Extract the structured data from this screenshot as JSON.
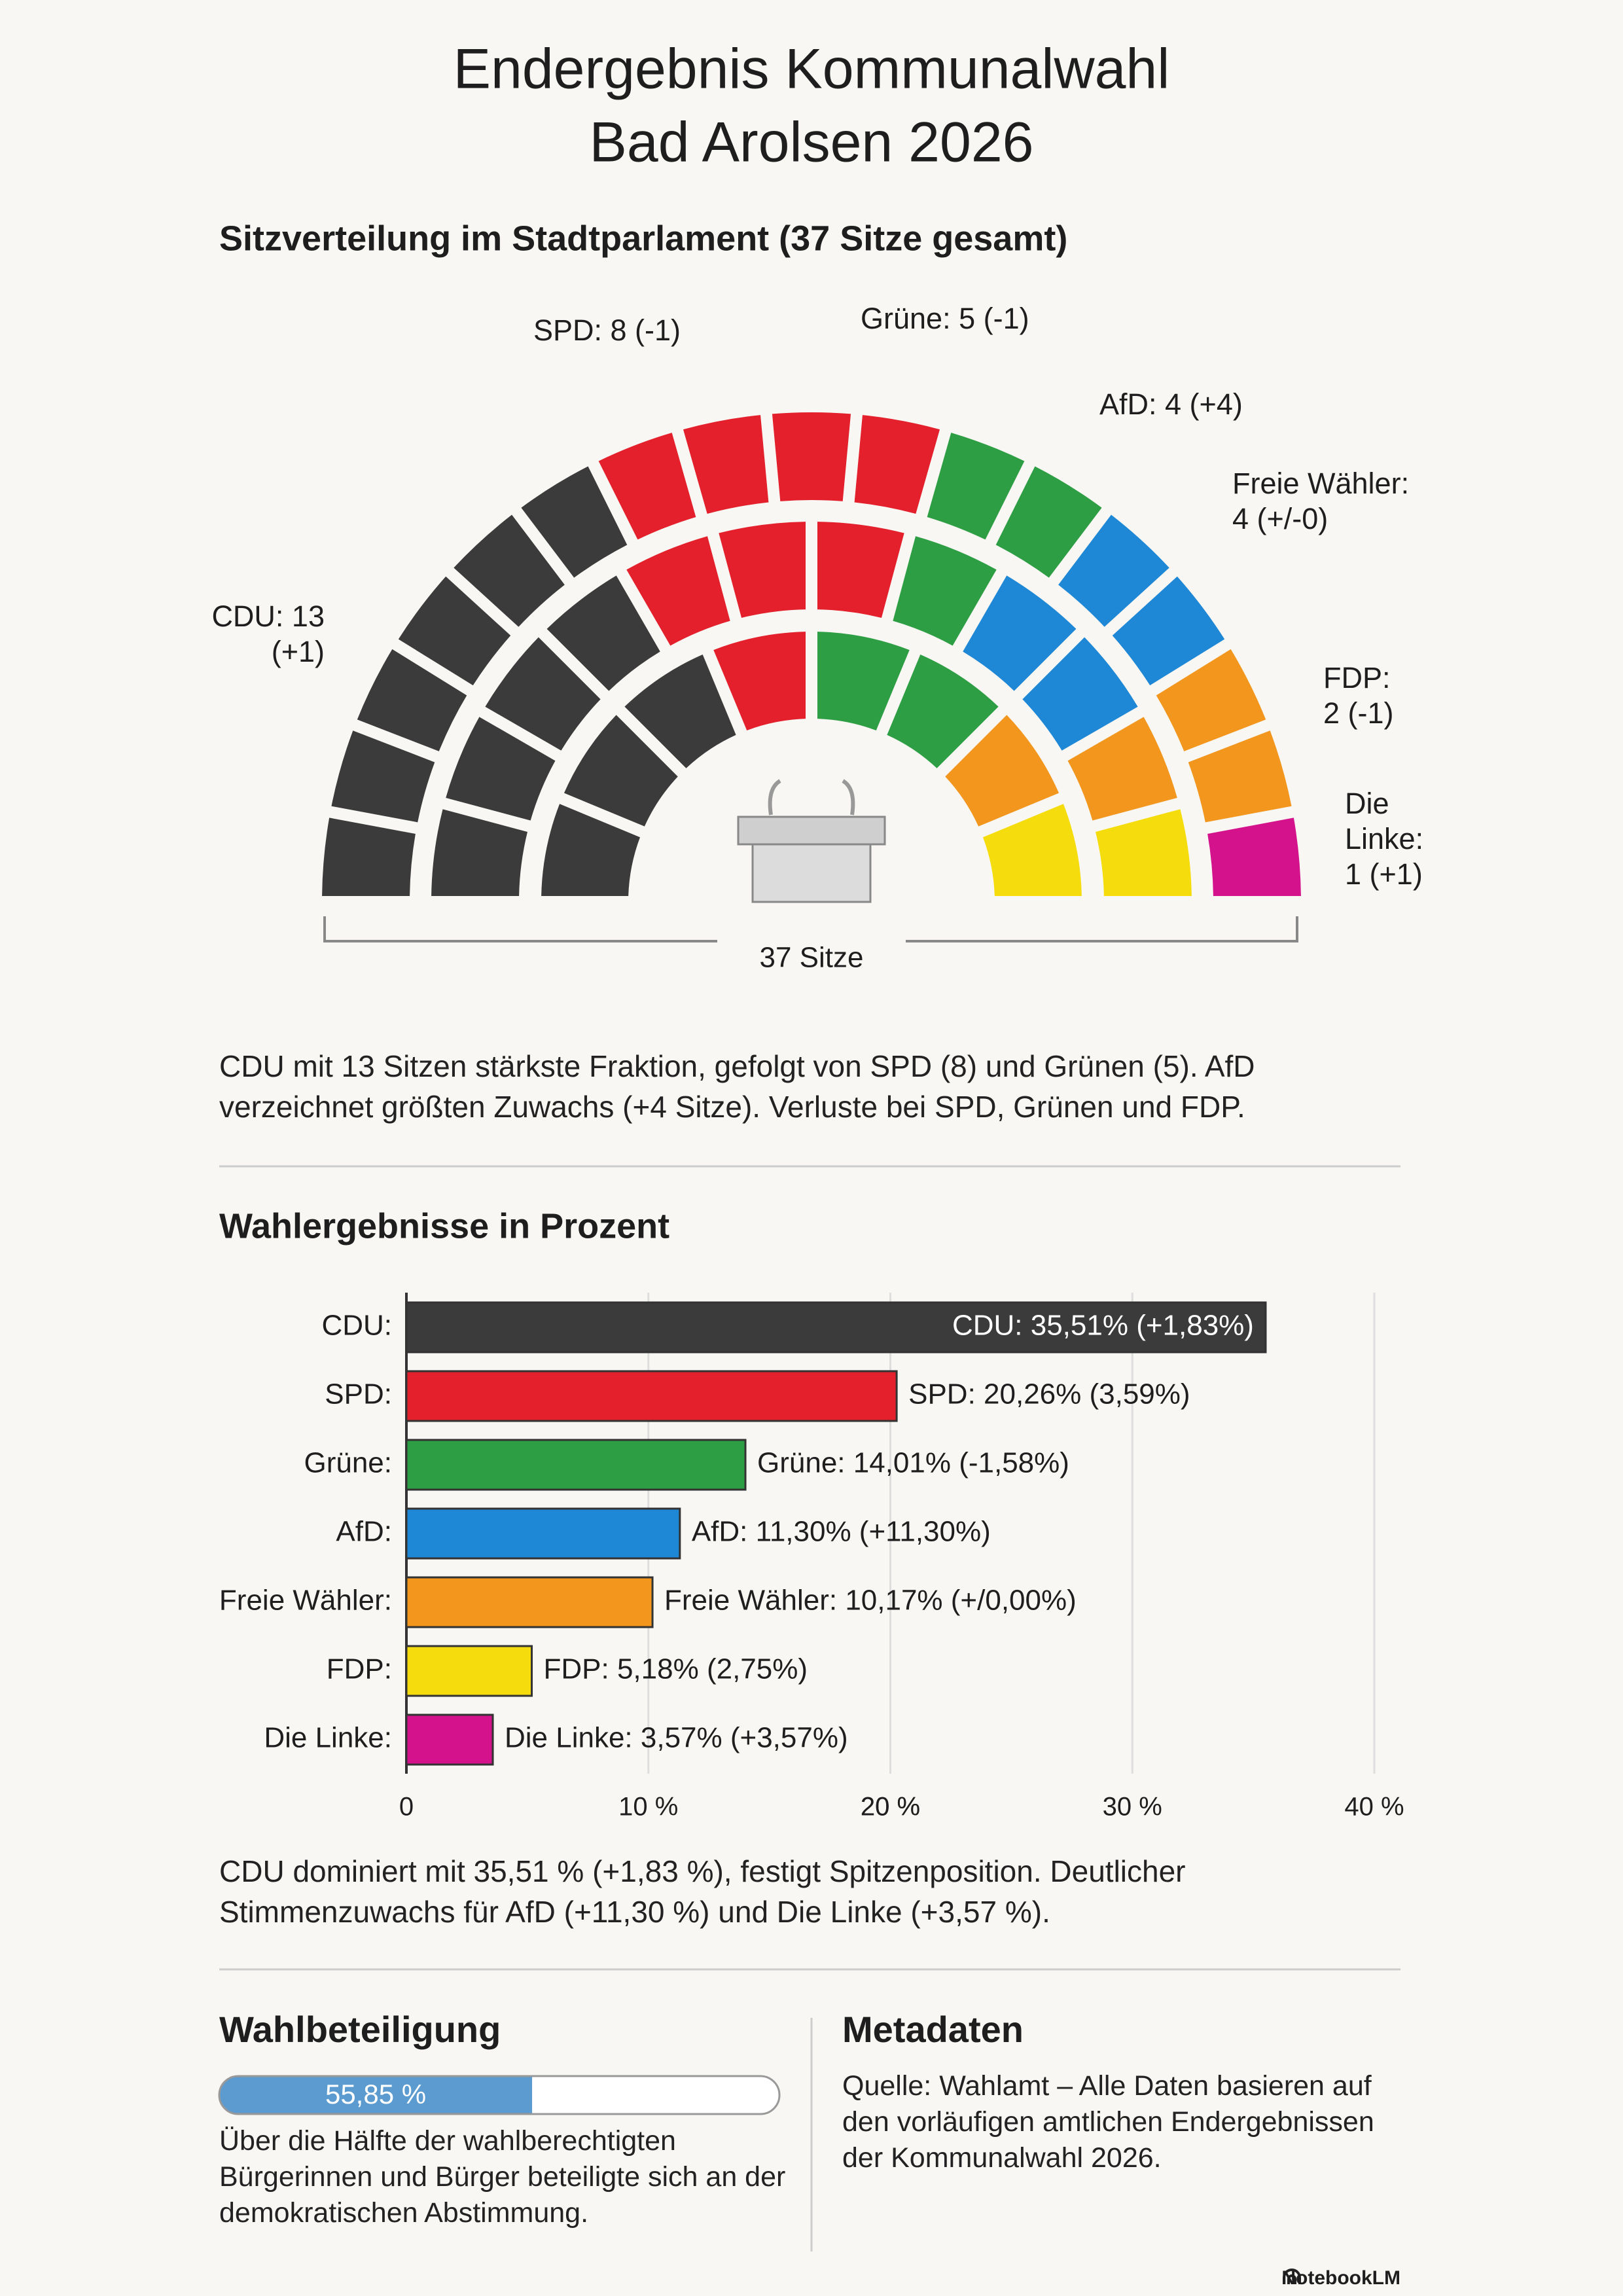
{
  "title": [
    "Endergebnis Kommunalwahl",
    "Bad Arolsen 2026"
  ],
  "chart_data": [
    {
      "type": "parliament",
      "title": "Sitzverteilung im Stadtparlament (37 Sitze gesamt)",
      "values": [
        13,
        8,
        5,
        4,
        4,
        2,
        1
      ],
      "value_labels": [
        [
          "CDU: 13",
          "(+1)"
        ],
        [
          "SPD: 8 (-1)"
        ],
        [
          "Grüne: 5 (-1)"
        ],
        [
          "AfD: 4 (+4)"
        ],
        [
          "Freie Wähler:",
          "4 (+/-0)"
        ],
        [
          "FDP:",
          "2 (-1)"
        ],
        [
          "Die",
          "Linke:",
          "1 (+1)"
        ]
      ],
      "colors": [
        "#3b3b3b",
        "#e3202b",
        "#2e9e44",
        "#1f88d6",
        "#f2961e",
        "#f5dc0c",
        "#d3128c"
      ],
      "total_label": "37 Sitze"
    },
    {
      "type": "hbar",
      "title": "Wahlergebnisse in Prozent",
      "categories": [
        "CDU:",
        "SPD:",
        "Grüne:",
        "AfD:",
        "Freie Wähler:",
        "FDP:",
        "Die Linke:"
      ],
      "values": [
        35.51,
        20.26,
        14.01,
        11.3,
        10.17,
        5.18,
        3.57
      ],
      "value_labels": [
        "CDU: 35,51% (+1,83%)",
        "SPD: 20,26% (3,59%)",
        "Grüne: 14,01% (-1,58%)",
        "AfD: 11,30% (+11,30%)",
        "Freie Wähler: 10,17% (+/0,00%)",
        "FDP: 5,18% (2,75%)",
        "Die Linke: 3,57% (+3,57%)"
      ],
      "colors": [
        "#3b3b3b",
        "#e3202b",
        "#2e9e44",
        "#1f88d6",
        "#f2961e",
        "#f5dc0c",
        "#d3128c"
      ],
      "xlim": [
        0,
        40
      ],
      "xticks": [
        0,
        {
          "value": 10,
          "label": "10 %"
        },
        {
          "value": 20,
          "label": "20 %"
        },
        {
          "value": 20,
          "label": "20 %"
        },
        {
          "value": 30,
          "label": "30 %"
        },
        {
          "value": 40,
          "label": "40 %"
        }
      ],
      "grid": true
    },
    {
      "type": "progress",
      "title": "Wahlbeteiligung",
      "values": [
        55.85
      ],
      "value_labels": [
        "55,85 %"
      ],
      "xlim": [
        0,
        100
      ],
      "color": "#5b9bd0"
    }
  ],
  "seats_summary": "CDU mit 13 Sitzen stärkste Fraktion, gefolgt von SPD (8) und Grünen (5). AfD verzeichnet größten Zuwachs (+4 Sitze). Verluste bei SPD, Grünen und FDP.",
  "results_summary": "CDU dominiert mit 35,51 % (+1,83 %), festigt Spitzenposition. Deutlicher Stimmenzuwachs für AfD (+11,30 %) und Die Linke (+3,57 %).",
  "turnout_text": "Über die Hälfte der wahlberechtigten Bürgerinnen und Bürger beteiligte sich an der demokratischen Abstimmung.",
  "metadata": {
    "title": "Metadaten",
    "text": "Quelle: Wahlamt – Alle Daten basieren auf den vorläufigen amtlichen Endergebnissen der Kommunalwahl 2026."
  },
  "footer": "NotebookLM"
}
